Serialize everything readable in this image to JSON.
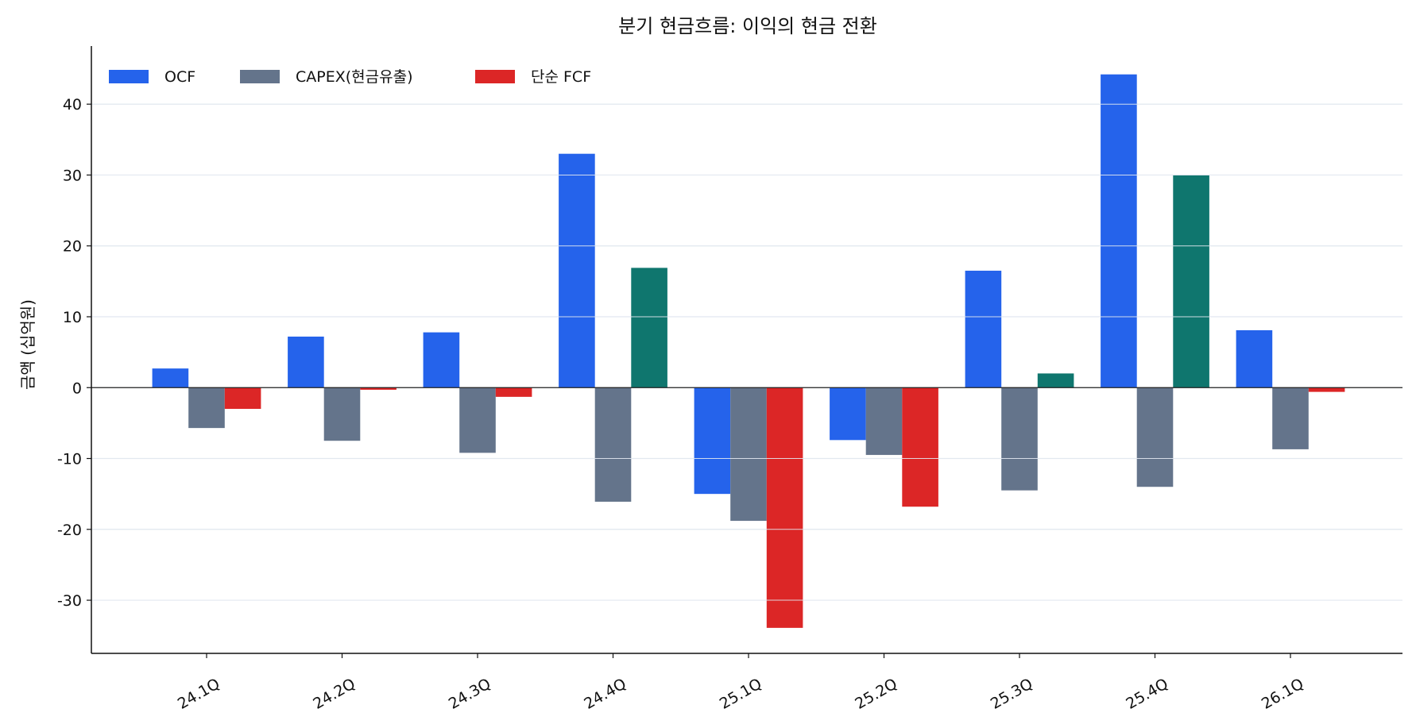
{
  "chart_data": {
    "type": "bar",
    "title": "분기 현금흐름: 이익의 현금 전환",
    "xlabel": "",
    "ylabel": "금액 (십억원)",
    "categories": [
      "24.1Q",
      "24.2Q",
      "24.3Q",
      "24.4Q",
      "25.1Q",
      "25.2Q",
      "25.3Q",
      "25.4Q",
      "26.1Q"
    ],
    "series": [
      {
        "name": "OCF",
        "color": "#2563eb",
        "values": [
          2.7,
          7.2,
          7.8,
          33.0,
          -15.0,
          -7.4,
          16.5,
          44.2,
          8.1
        ]
      },
      {
        "name": "CAPEX(현금유출)",
        "color": "#64748b",
        "values": [
          -5.7,
          -7.5,
          -9.2,
          -16.1,
          -18.8,
          -9.5,
          -14.5,
          -14.0,
          -8.7
        ]
      },
      {
        "name": "단순 FCF",
        "color": "#dc2626",
        "positive_color": "#0f766e",
        "values": [
          -3.0,
          -0.3,
          -1.3,
          16.9,
          -33.9,
          -16.8,
          2.0,
          30.0,
          -0.6
        ]
      }
    ],
    "ylim": [
      -37.5,
      48.2
    ],
    "yticks": [
      -30,
      -20,
      -10,
      0,
      10,
      20,
      30,
      40
    ],
    "grid": true,
    "legend_position": "top-left"
  }
}
